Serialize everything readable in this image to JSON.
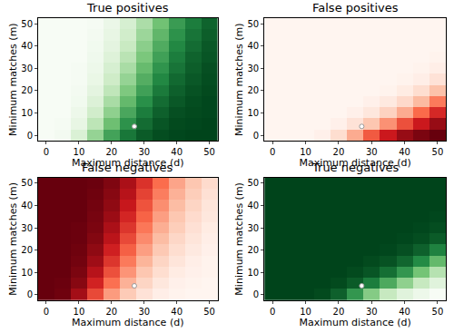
{
  "chart_data": [
    {
      "type": "heatmap",
      "title": "True positives",
      "x_label": "Maximum distance (d)",
      "y_label": "Minimum matches (m)",
      "color": "green",
      "x": [
        0,
        5,
        10,
        15,
        20,
        25,
        30,
        35,
        40,
        45,
        50
      ],
      "y": [
        0,
        5,
        10,
        15,
        20,
        25,
        30,
        35,
        40,
        45,
        50
      ],
      "z": [
        [
          0,
          0.02,
          0.15,
          0.4,
          0.65,
          0.82,
          0.92,
          0.97,
          0.99,
          1,
          1
        ],
        [
          0,
          0.01,
          0.08,
          0.28,
          0.52,
          0.72,
          0.86,
          0.94,
          0.98,
          0.99,
          1
        ],
        [
          0,
          0,
          0.05,
          0.2,
          0.42,
          0.63,
          0.8,
          0.9,
          0.96,
          0.98,
          0.99
        ],
        [
          0,
          0,
          0.03,
          0.14,
          0.34,
          0.55,
          0.73,
          0.86,
          0.93,
          0.97,
          0.99
        ],
        [
          0,
          0,
          0.02,
          0.1,
          0.27,
          0.47,
          0.66,
          0.81,
          0.9,
          0.95,
          0.98
        ],
        [
          0,
          0,
          0.01,
          0.07,
          0.21,
          0.4,
          0.6,
          0.76,
          0.87,
          0.93,
          0.97
        ],
        [
          0,
          0,
          0.01,
          0.05,
          0.17,
          0.34,
          0.54,
          0.71,
          0.83,
          0.91,
          0.96
        ],
        [
          0,
          0,
          0,
          0.04,
          0.13,
          0.29,
          0.48,
          0.66,
          0.8,
          0.89,
          0.94
        ],
        [
          0,
          0,
          0,
          0.03,
          0.1,
          0.24,
          0.43,
          0.61,
          0.76,
          0.86,
          0.93
        ],
        [
          0,
          0,
          0,
          0.02,
          0.08,
          0.2,
          0.38,
          0.56,
          0.72,
          0.83,
          0.91
        ],
        [
          0,
          0,
          0,
          0.01,
          0.06,
          0.17,
          0.33,
          0.51,
          0.68,
          0.8,
          0.89
        ]
      ],
      "zlim": [
        0,
        1
      ],
      "xlim": [
        -2.5,
        52.5
      ],
      "ylim": [
        -2.5,
        52.5
      ],
      "xticks": [
        0,
        10,
        20,
        30,
        40,
        50
      ],
      "yticks": [
        0,
        10,
        20,
        30,
        40,
        50
      ],
      "points": [
        {
          "x": 27,
          "y": 4
        }
      ],
      "marker": "circle"
    },
    {
      "type": "heatmap",
      "title": "False positives",
      "x_label": "Maximum distance (d)",
      "y_label": "Minimum matches (m)",
      "color": "red",
      "x": [
        0,
        5,
        10,
        15,
        20,
        25,
        30,
        35,
        40,
        45,
        50
      ],
      "y": [
        0,
        5,
        10,
        15,
        20,
        25,
        30,
        35,
        40,
        45,
        50
      ],
      "z": [
        [
          0,
          0,
          0,
          0.02,
          0.1,
          0.3,
          0.55,
          0.75,
          0.88,
          0.95,
          1
        ],
        [
          0,
          0,
          0,
          0,
          0.02,
          0.08,
          0.2,
          0.38,
          0.58,
          0.75,
          0.88
        ],
        [
          0,
          0,
          0,
          0,
          0,
          0.02,
          0.06,
          0.15,
          0.3,
          0.5,
          0.7
        ],
        [
          0,
          0,
          0,
          0,
          0,
          0,
          0.02,
          0.05,
          0.12,
          0.25,
          0.45
        ],
        [
          0,
          0,
          0,
          0,
          0,
          0,
          0,
          0.01,
          0.04,
          0.1,
          0.22
        ],
        [
          0,
          0,
          0,
          0,
          0,
          0,
          0,
          0,
          0.01,
          0.03,
          0.08
        ],
        [
          0,
          0,
          0,
          0,
          0,
          0,
          0,
          0,
          0,
          0.01,
          0.03
        ],
        [
          0,
          0,
          0,
          0,
          0,
          0,
          0,
          0,
          0,
          0,
          0.01
        ],
        [
          0,
          0,
          0,
          0,
          0,
          0,
          0,
          0,
          0,
          0,
          0
        ],
        [
          0,
          0,
          0,
          0,
          0,
          0,
          0,
          0,
          0,
          0,
          0
        ],
        [
          0,
          0,
          0,
          0,
          0,
          0,
          0,
          0,
          0,
          0,
          0
        ]
      ],
      "zlim": [
        0,
        1
      ],
      "xlim": [
        -2.5,
        52.5
      ],
      "ylim": [
        -2.5,
        52.5
      ],
      "xticks": [
        0,
        10,
        20,
        30,
        40,
        50
      ],
      "yticks": [
        0,
        10,
        20,
        30,
        40,
        50
      ],
      "points": [
        {
          "x": 27,
          "y": 4
        }
      ],
      "marker": "circle"
    },
    {
      "type": "heatmap",
      "title": "False negatives",
      "x_label": "Maximum distance (d)",
      "y_label": "Minimum matches (m)",
      "color": "red",
      "x": [
        0,
        5,
        10,
        15,
        20,
        25,
        30,
        35,
        40,
        45,
        50
      ],
      "y": [
        0,
        5,
        10,
        15,
        20,
        25,
        30,
        35,
        40,
        45,
        50
      ],
      "z": [
        [
          1,
          0.98,
          0.85,
          0.6,
          0.35,
          0.18,
          0.08,
          0.03,
          0.01,
          0,
          0
        ],
        [
          1,
          0.99,
          0.92,
          0.72,
          0.48,
          0.28,
          0.14,
          0.06,
          0.02,
          0.01,
          0
        ],
        [
          1,
          1,
          0.95,
          0.8,
          0.58,
          0.37,
          0.2,
          0.1,
          0.04,
          0.02,
          0.01
        ],
        [
          1,
          1,
          0.97,
          0.86,
          0.66,
          0.45,
          0.27,
          0.14,
          0.07,
          0.03,
          0.01
        ],
        [
          1,
          1,
          0.98,
          0.9,
          0.73,
          0.53,
          0.34,
          0.19,
          0.1,
          0.05,
          0.02
        ],
        [
          1,
          1,
          0.99,
          0.93,
          0.79,
          0.6,
          0.4,
          0.24,
          0.13,
          0.07,
          0.03
        ],
        [
          1,
          1,
          0.99,
          0.95,
          0.83,
          0.66,
          0.46,
          0.29,
          0.17,
          0.09,
          0.04
        ],
        [
          1,
          1,
          1,
          0.96,
          0.87,
          0.71,
          0.52,
          0.34,
          0.2,
          0.11,
          0.06
        ],
        [
          1,
          1,
          1,
          0.97,
          0.9,
          0.76,
          0.57,
          0.39,
          0.24,
          0.14,
          0.07
        ],
        [
          1,
          1,
          1,
          0.98,
          0.92,
          0.8,
          0.62,
          0.44,
          0.28,
          0.17,
          0.09
        ],
        [
          1,
          1,
          1,
          0.99,
          0.94,
          0.83,
          0.67,
          0.49,
          0.32,
          0.2,
          0.11
        ]
      ],
      "zlim": [
        0,
        1
      ],
      "xlim": [
        -2.5,
        52.5
      ],
      "ylim": [
        -2.5,
        52.5
      ],
      "xticks": [
        0,
        10,
        20,
        30,
        40,
        50
      ],
      "yticks": [
        0,
        10,
        20,
        30,
        40,
        50
      ],
      "points": [
        {
          "x": 27,
          "y": 4
        }
      ],
      "marker": "circle"
    },
    {
      "type": "heatmap",
      "title": "True negatives",
      "x_label": "Maximum distance (d)",
      "y_label": "Minimum matches (m)",
      "color": "green",
      "x": [
        0,
        5,
        10,
        15,
        20,
        25,
        30,
        35,
        40,
        45,
        50
      ],
      "y": [
        0,
        5,
        10,
        15,
        20,
        25,
        30,
        35,
        40,
        45,
        50
      ],
      "z": [
        [
          1,
          1,
          1,
          0.98,
          0.9,
          0.7,
          0.45,
          0.25,
          0.12,
          0.05,
          0
        ],
        [
          1,
          1,
          1,
          1,
          0.98,
          0.92,
          0.8,
          0.62,
          0.42,
          0.25,
          0.12
        ],
        [
          1,
          1,
          1,
          1,
          1,
          0.98,
          0.94,
          0.85,
          0.7,
          0.5,
          0.3
        ],
        [
          1,
          1,
          1,
          1,
          1,
          1,
          0.98,
          0.95,
          0.88,
          0.75,
          0.55
        ],
        [
          1,
          1,
          1,
          1,
          1,
          1,
          1,
          0.99,
          0.96,
          0.9,
          0.78
        ],
        [
          1,
          1,
          1,
          1,
          1,
          1,
          1,
          1,
          0.99,
          0.97,
          0.92
        ],
        [
          1,
          1,
          1,
          1,
          1,
          1,
          1,
          1,
          1,
          0.99,
          0.97
        ],
        [
          1,
          1,
          1,
          1,
          1,
          1,
          1,
          1,
          1,
          1,
          0.99
        ],
        [
          1,
          1,
          1,
          1,
          1,
          1,
          1,
          1,
          1,
          1,
          1
        ],
        [
          1,
          1,
          1,
          1,
          1,
          1,
          1,
          1,
          1,
          1,
          1
        ],
        [
          1,
          1,
          1,
          1,
          1,
          1,
          1,
          1,
          1,
          1,
          1
        ]
      ],
      "zlim": [
        0,
        1
      ],
      "xlim": [
        -2.5,
        52.5
      ],
      "ylim": [
        -2.5,
        52.5
      ],
      "xticks": [
        0,
        10,
        20,
        30,
        40,
        50
      ],
      "yticks": [
        0,
        10,
        20,
        30,
        40,
        50
      ],
      "points": [
        {
          "x": 27,
          "y": 4
        }
      ],
      "marker": "circle"
    }
  ]
}
